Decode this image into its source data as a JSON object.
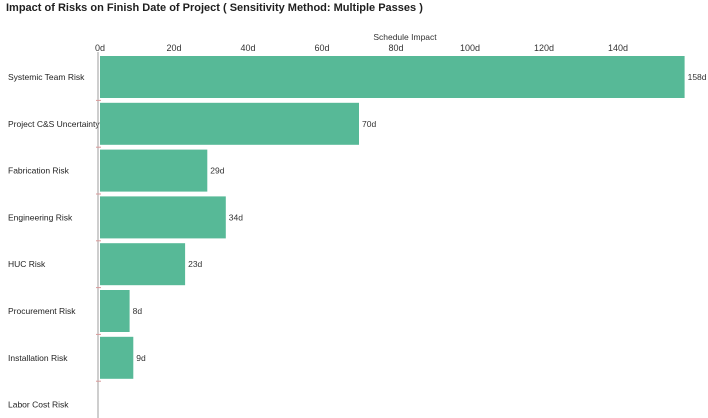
{
  "colors": {
    "bar": "#57b997",
    "axis": "#9e9e9e",
    "tick_mark": "#d99a9a"
  },
  "chart_data": {
    "type": "bar",
    "orientation": "horizontal",
    "title": "Impact of Risks on Finish Date of Project ( Sensitivity Method: Multiple Passes )",
    "xlabel": "Schedule Impact",
    "x_axis_position": "top",
    "xlim": [
      0,
      158
    ],
    "x_ticks": [
      0,
      20,
      40,
      60,
      80,
      100,
      120,
      140
    ],
    "x_tick_labels": [
      "0d",
      "20d",
      "40d",
      "60d",
      "80d",
      "100d",
      "120d",
      "140d"
    ],
    "grid": false,
    "categories": [
      "Systemic Team Risk",
      "Project C&S  Uncertainty",
      "Fabrication Risk",
      "Engineering Risk",
      "HUC Risk",
      "Procurement Risk",
      "Installation Risk",
      "Labor Cost Risk"
    ],
    "values": [
      158,
      70,
      29,
      34,
      23,
      8,
      9,
      null
    ],
    "value_labels": [
      "158d",
      "70d",
      "29d",
      "34d",
      "23d",
      "8d",
      "9d",
      ""
    ]
  }
}
